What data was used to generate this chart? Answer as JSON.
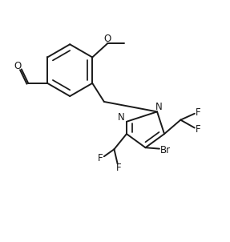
{
  "bg_color": "#ffffff",
  "line_color": "#1a1a1a",
  "line_width": 1.4,
  "font_size": 8.5,
  "figsize": [
    2.87,
    3.02
  ],
  "dpi": 100,
  "xlim": [
    0,
    10
  ],
  "ylim": [
    0,
    10.5
  ]
}
